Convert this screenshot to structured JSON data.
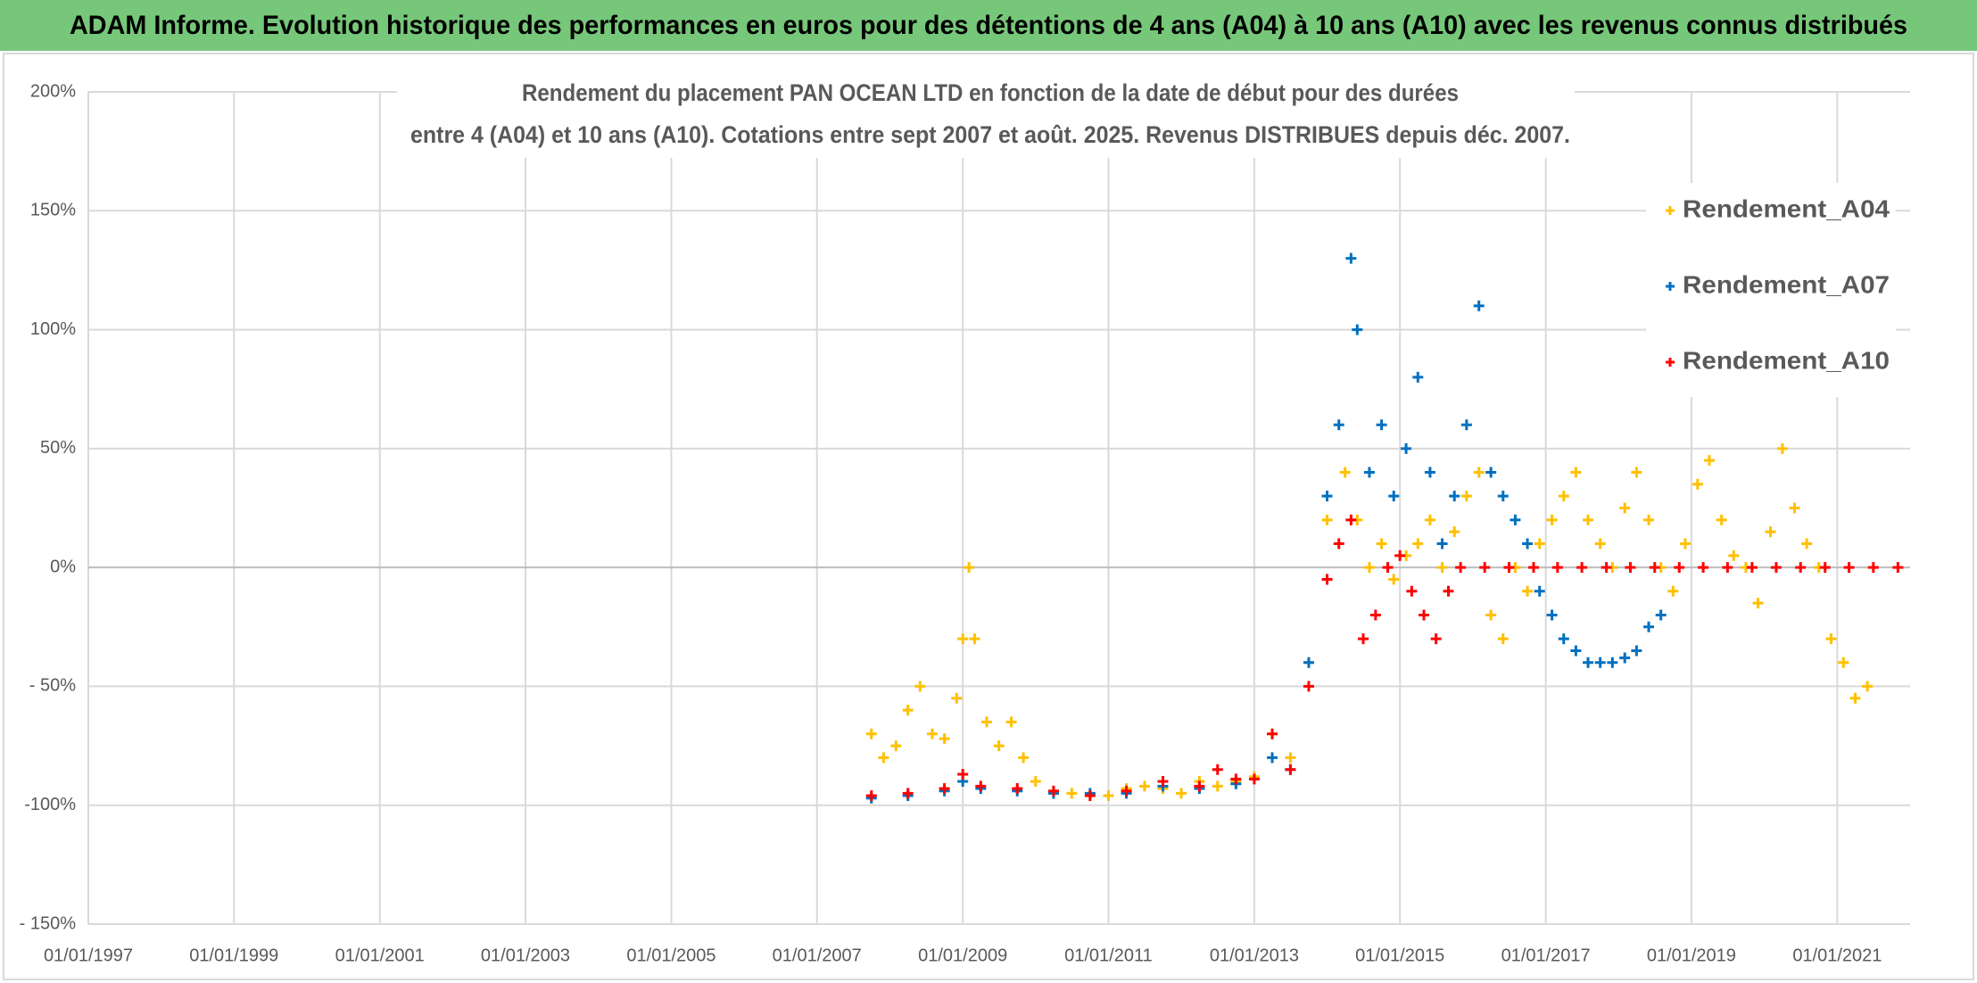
{
  "header": {
    "title": "ADAM Informe. Evolution historique des performances en euros pour des détentions de 4 ans (A04) à 10 ans (A10) avec les revenus connus distribués"
  },
  "chart_data": {
    "type": "scatter",
    "title": [
      "Rendement du placement PAN OCEAN LTD en fonction de la date de début pour des durées",
      "entre 4 (A04) et 10 ans (A10). Cotations entre sept 2007 et août. 2025. Revenus DISTRIBUES depuis déc. 2007."
    ],
    "xlim": [
      "1997-01-01",
      "2022-01-01"
    ],
    "xticks": [
      {
        "value": "1997-01-01",
        "label": "01/01/1997"
      },
      {
        "value": "1999-01-01",
        "label": "01/01/1999"
      },
      {
        "value": "2001-01-01",
        "label": "01/01/2001"
      },
      {
        "value": "2003-01-01",
        "label": "01/01/2003"
      },
      {
        "value": "2005-01-01",
        "label": "01/01/2005"
      },
      {
        "value": "2007-01-01",
        "label": "01/01/2007"
      },
      {
        "value": "2009-01-01",
        "label": "01/01/2009"
      },
      {
        "value": "2011-01-01",
        "label": "01/01/2011"
      },
      {
        "value": "2013-01-01",
        "label": "01/01/2013"
      },
      {
        "value": "2015-01-01",
        "label": "01/01/2015"
      },
      {
        "value": "2017-01-01",
        "label": "01/01/2017"
      },
      {
        "value": "2019-01-01",
        "label": "01/01/2019"
      },
      {
        "value": "2021-01-01",
        "label": "01/01/2021"
      }
    ],
    "ylim": [
      -150,
      200
    ],
    "yticks": [
      {
        "value": -150,
        "label": "- 150%"
      },
      {
        "value": -100,
        "label": "-100%"
      },
      {
        "value": -50,
        "label": "- 50%"
      },
      {
        "value": 0,
        "label": "0%"
      },
      {
        "value": 50,
        "label": "50%"
      },
      {
        "value": 100,
        "label": "100%"
      },
      {
        "value": 150,
        "label": "150%"
      },
      {
        "value": 200,
        "label": "200%"
      }
    ],
    "grid": true,
    "legend": "right",
    "series": [
      {
        "name": "Rendement_A04",
        "color": "#FFC000",
        "x": [
          "2007-10-01",
          "2007-12-01",
          "2008-02-01",
          "2008-04-01",
          "2008-06-01",
          "2008-08-01",
          "2008-10-01",
          "2008-12-01",
          "2009-01-01",
          "2009-02-01",
          "2009-03-01",
          "2009-05-01",
          "2009-07-01",
          "2009-09-01",
          "2009-11-01",
          "2010-01-01",
          "2010-04-01",
          "2010-07-01",
          "2010-10-01",
          "2011-01-01",
          "2011-04-01",
          "2011-07-01",
          "2011-10-01",
          "2012-01-01",
          "2012-04-01",
          "2012-07-01",
          "2012-10-01",
          "2013-01-01",
          "2013-04-01",
          "2013-07-01",
          "2013-10-01",
          "2014-01-01",
          "2014-04-01",
          "2014-06-01",
          "2014-08-01",
          "2014-10-01",
          "2014-12-01",
          "2015-02-01",
          "2015-04-01",
          "2015-06-01",
          "2015-08-01",
          "2015-10-01",
          "2015-12-01",
          "2016-02-01",
          "2016-04-01",
          "2016-06-01",
          "2016-08-01",
          "2016-10-01",
          "2016-12-01",
          "2017-02-01",
          "2017-04-01",
          "2017-06-01",
          "2017-08-01",
          "2017-10-01",
          "2017-12-01",
          "2018-02-01",
          "2018-04-01",
          "2018-06-01",
          "2018-08-01",
          "2018-10-01",
          "2018-12-01",
          "2019-02-01",
          "2019-04-01",
          "2019-06-01",
          "2019-08-01",
          "2019-10-01",
          "2019-12-01",
          "2020-02-01",
          "2020-04-01",
          "2020-06-01",
          "2020-08-01",
          "2020-10-01",
          "2020-12-01",
          "2021-02-01",
          "2021-04-01",
          "2021-06-01"
        ],
        "values": [
          -70,
          -80,
          -75,
          -60,
          -50,
          -70,
          -72,
          -55,
          -30,
          0,
          -30,
          -65,
          -75,
          -65,
          -80,
          -90,
          -95,
          -95,
          -96,
          -96,
          -93,
          -92,
          -93,
          -95,
          -90,
          -92,
          -90,
          -88,
          -70,
          -80,
          -40,
          20,
          40,
          20,
          0,
          10,
          -5,
          5,
          10,
          20,
          0,
          15,
          30,
          40,
          -20,
          -30,
          0,
          -10,
          10,
          20,
          30,
          40,
          20,
          10,
          0,
          25,
          40,
          20,
          0,
          -10,
          10,
          35,
          45,
          20,
          5,
          0,
          -15,
          15,
          50,
          25,
          10,
          0,
          -30,
          -40,
          -55,
          -50
        ]
      },
      {
        "name": "Rendement_A07",
        "color": "#0070C0",
        "x": [
          "2007-10-01",
          "2008-04-01",
          "2008-10-01",
          "2009-01-01",
          "2009-04-01",
          "2009-10-01",
          "2010-04-01",
          "2010-10-01",
          "2011-04-01",
          "2011-10-01",
          "2012-04-01",
          "2012-10-01",
          "2013-04-01",
          "2013-07-01",
          "2013-10-01",
          "2014-01-01",
          "2014-03-01",
          "2014-05-01",
          "2014-06-01",
          "2014-08-01",
          "2014-10-01",
          "2014-12-01",
          "2015-02-01",
          "2015-04-01",
          "2015-06-01",
          "2015-08-01",
          "2015-10-01",
          "2015-12-01",
          "2016-02-01",
          "2016-04-01",
          "2016-06-01",
          "2016-08-01",
          "2016-10-01",
          "2016-12-01",
          "2017-02-01",
          "2017-04-01",
          "2017-06-01",
          "2017-08-01",
          "2017-10-01",
          "2017-12-01",
          "2018-02-01",
          "2018-04-01",
          "2018-06-01",
          "2018-08-01"
        ],
        "values": [
          -97,
          -96,
          -94,
          -90,
          -93,
          -94,
          -95,
          -95,
          -95,
          -92,
          -93,
          -91,
          -80,
          -85,
          -40,
          30,
          60,
          130,
          100,
          40,
          60,
          30,
          50,
          80,
          40,
          10,
          30,
          60,
          110,
          40,
          30,
          20,
          10,
          -10,
          -20,
          -30,
          -35,
          -40,
          -40,
          -40,
          -38,
          -35,
          -25,
          -20
        ]
      },
      {
        "name": "Rendement_A10",
        "color": "#FF0000",
        "x": [
          "2007-10-01",
          "2008-04-01",
          "2008-10-01",
          "2009-01-01",
          "2009-04-01",
          "2009-10-01",
          "2010-04-01",
          "2010-10-01",
          "2011-04-01",
          "2011-10-01",
          "2012-04-01",
          "2012-07-01",
          "2012-10-01",
          "2013-01-01",
          "2013-04-01",
          "2013-07-01",
          "2013-10-01",
          "2014-01-01",
          "2014-03-01",
          "2014-05-01",
          "2014-07-01",
          "2014-09-01",
          "2014-11-01",
          "2015-01-01",
          "2015-03-01",
          "2015-05-01",
          "2015-07-01",
          "2015-09-01",
          "2015-11-01",
          "2016-03-01",
          "2016-07-01",
          "2016-11-01",
          "2017-03-01",
          "2017-07-01",
          "2017-11-01",
          "2018-03-01",
          "2018-07-01",
          "2018-11-01",
          "2019-03-01",
          "2019-07-01",
          "2019-11-01",
          "2020-03-01",
          "2020-07-01",
          "2020-11-01",
          "2021-03-01",
          "2021-07-01",
          "2021-11-01"
        ],
        "values": [
          -96,
          -95,
          -93,
          -87,
          -92,
          -93,
          -94,
          -96,
          -94,
          -90,
          -92,
          -85,
          -89,
          -89,
          -70,
          -85,
          -50,
          -5,
          10,
          20,
          -30,
          -20,
          0,
          5,
          -10,
          -20,
          -30,
          -10,
          0,
          0,
          0,
          0,
          0,
          0,
          0,
          0,
          0,
          0,
          0,
          0,
          0,
          0,
          0,
          0,
          0,
          0,
          0
        ]
      }
    ]
  }
}
